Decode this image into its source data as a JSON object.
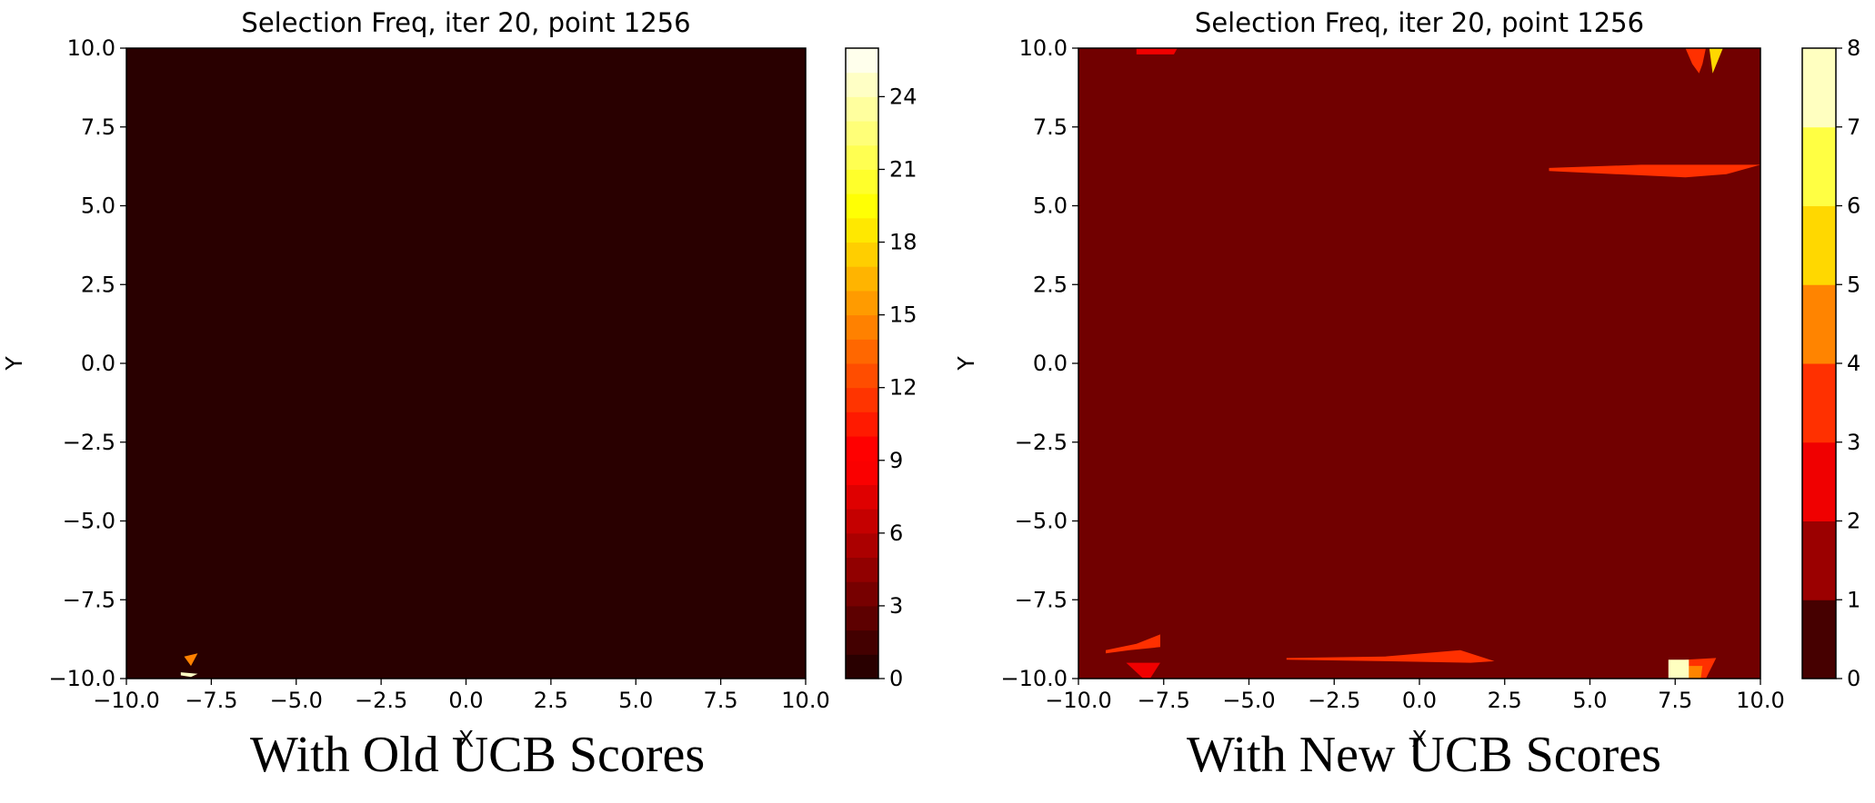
{
  "chart_data": [
    {
      "type": "heatmap",
      "subtype": "filled-contour",
      "title": "Selection Freq, iter 20, point 1256",
      "xlabel": "X",
      "ylabel": "Y",
      "xlim": [
        -10,
        10
      ],
      "ylim": [
        -10,
        10
      ],
      "x_ticks": [
        "−10.0",
        "−7.5",
        "−5.0",
        "−2.5",
        "0.0",
        "2.5",
        "5.0",
        "7.5",
        "10.0"
      ],
      "y_ticks": [
        "−10.0",
        "−7.5",
        "−5.0",
        "−2.5",
        "0.0",
        "2.5",
        "5.0",
        "7.5",
        "10.0"
      ],
      "background_value": 0,
      "colormap": "hot",
      "colorbar": {
        "min": 0,
        "max": 26,
        "levels": 26,
        "ticks": [
          "0",
          "3",
          "6",
          "9",
          "12",
          "15",
          "18",
          "21",
          "24"
        ],
        "tick_values": [
          0,
          3,
          6,
          9,
          12,
          15,
          18,
          21,
          24
        ]
      },
      "regions": [
        {
          "x": [
            -8.3,
            -7.9,
            -8.1
          ],
          "y": [
            -9.3,
            -9.2,
            -9.6
          ],
          "level": 14
        },
        {
          "x": [
            -8.4,
            -7.9,
            -8.1,
            -8.4
          ],
          "y": [
            -9.8,
            -9.85,
            -9.95,
            -9.9
          ],
          "level": 24
        }
      ],
      "caption": "With Old UCB Scores"
    },
    {
      "type": "heatmap",
      "subtype": "filled-contour",
      "title": "Selection Freq, iter 20, point 1256",
      "xlabel": "X",
      "ylabel": "Y",
      "xlim": [
        -10,
        10
      ],
      "ylim": [
        -10,
        10
      ],
      "x_ticks": [
        "−10.0",
        "−7.5",
        "−5.0",
        "−2.5",
        "0.0",
        "2.5",
        "5.0",
        "7.5",
        "10.0"
      ],
      "y_ticks": [
        "−10.0",
        "−7.5",
        "−5.0",
        "−2.5",
        "0.0",
        "2.5",
        "5.0",
        "7.5",
        "10.0"
      ],
      "background_value": 0.5,
      "colormap": "hot",
      "colorbar": {
        "min": 0,
        "max": 8,
        "levels": 8,
        "ticks": [
          "0",
          "1",
          "2",
          "3",
          "4",
          "5",
          "6",
          "7",
          "8"
        ],
        "tick_values": [
          0,
          1,
          2,
          3,
          4,
          5,
          6,
          7,
          8
        ]
      },
      "regions": [
        {
          "x": [
            -8.3,
            -7.1,
            -7.2,
            -8.3
          ],
          "y": [
            10.0,
            10.0,
            9.8,
            9.8
          ],
          "level": 2
        },
        {
          "x": [
            7.8,
            8.4,
            8.3,
            8.2,
            8.0
          ],
          "y": [
            10.0,
            10.0,
            9.5,
            9.2,
            9.5
          ],
          "level": 3
        },
        {
          "x": [
            8.5,
            8.9,
            8.6
          ],
          "y": [
            10.0,
            10.0,
            9.2
          ],
          "level": 5
        },
        {
          "x": [
            3.8,
            6.5,
            8.5,
            10.0,
            9.0,
            7.8,
            3.8
          ],
          "y": [
            6.2,
            6.3,
            6.3,
            6.3,
            6.0,
            5.9,
            6.1
          ],
          "level": 3
        },
        {
          "x": [
            -9.2,
            -8.3,
            -7.6,
            -7.6,
            -8.5,
            -9.2
          ],
          "y": [
            -9.1,
            -8.9,
            -8.6,
            -9.0,
            -9.1,
            -9.2
          ],
          "level": 3
        },
        {
          "x": [
            -8.6,
            -7.6,
            -7.9,
            -8.1
          ],
          "y": [
            -9.5,
            -9.5,
            -10.0,
            -10.0
          ],
          "level": 2
        },
        {
          "x": [
            -3.9,
            -1.0,
            1.2,
            2.2,
            1.5,
            -1.0,
            -3.9
          ],
          "y": [
            -9.35,
            -9.3,
            -9.1,
            -9.45,
            -9.5,
            -9.45,
            -9.4
          ],
          "level": 3
        },
        {
          "x": [
            7.8,
            8.7,
            8.4,
            7.9
          ],
          "y": [
            -9.4,
            -9.35,
            -10.0,
            -10.0
          ],
          "level": 3
        },
        {
          "x": [
            7.9,
            8.3,
            8.25,
            7.9
          ],
          "y": [
            -9.6,
            -9.6,
            -10.0,
            -10.0
          ],
          "level": 4
        },
        {
          "x": [
            7.3,
            7.9,
            7.9,
            7.3
          ],
          "y": [
            -9.4,
            -9.4,
            -10.0,
            -10.0
          ],
          "level": 7
        }
      ],
      "caption": "With New UCB Scores"
    }
  ]
}
